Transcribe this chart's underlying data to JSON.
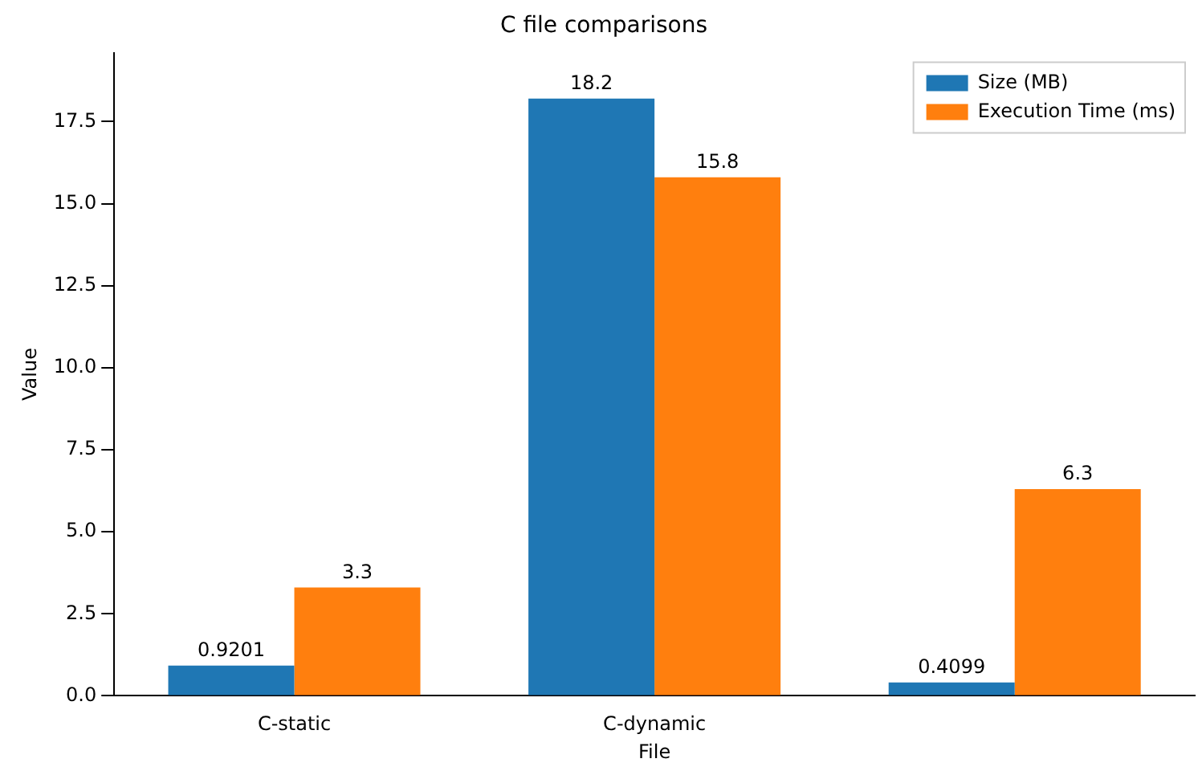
{
  "chart_data": {
    "type": "bar",
    "title": "C file comparisons",
    "xlabel": "File",
    "ylabel": "Value",
    "categories": [
      "C-static",
      "C-dynamic",
      null
    ],
    "series": [
      {
        "name": "Size (MB)",
        "color": "#1f77b4",
        "values": [
          0.9201,
          18.2,
          0.4099
        ]
      },
      {
        "name": "Execution Time (ms)",
        "color": "#ff7f0e",
        "values": [
          3.3,
          15.8,
          6.3
        ]
      }
    ],
    "ylim": [
      0,
      19.6
    ],
    "yticks": [
      {
        "value": 0,
        "label": "0.0"
      },
      {
        "value": 2.5,
        "label": "2.5"
      },
      {
        "value": 5,
        "label": "5.0"
      },
      {
        "value": 7.5,
        "label": "7.5"
      },
      {
        "value": 10,
        "label": "10.0"
      },
      {
        "value": 12.5,
        "label": "12.5"
      },
      {
        "value": 15,
        "label": "15.0"
      },
      {
        "value": 17.5,
        "label": "17.5"
      }
    ],
    "grid": false,
    "legend": "top right",
    "data_labels": true
  }
}
